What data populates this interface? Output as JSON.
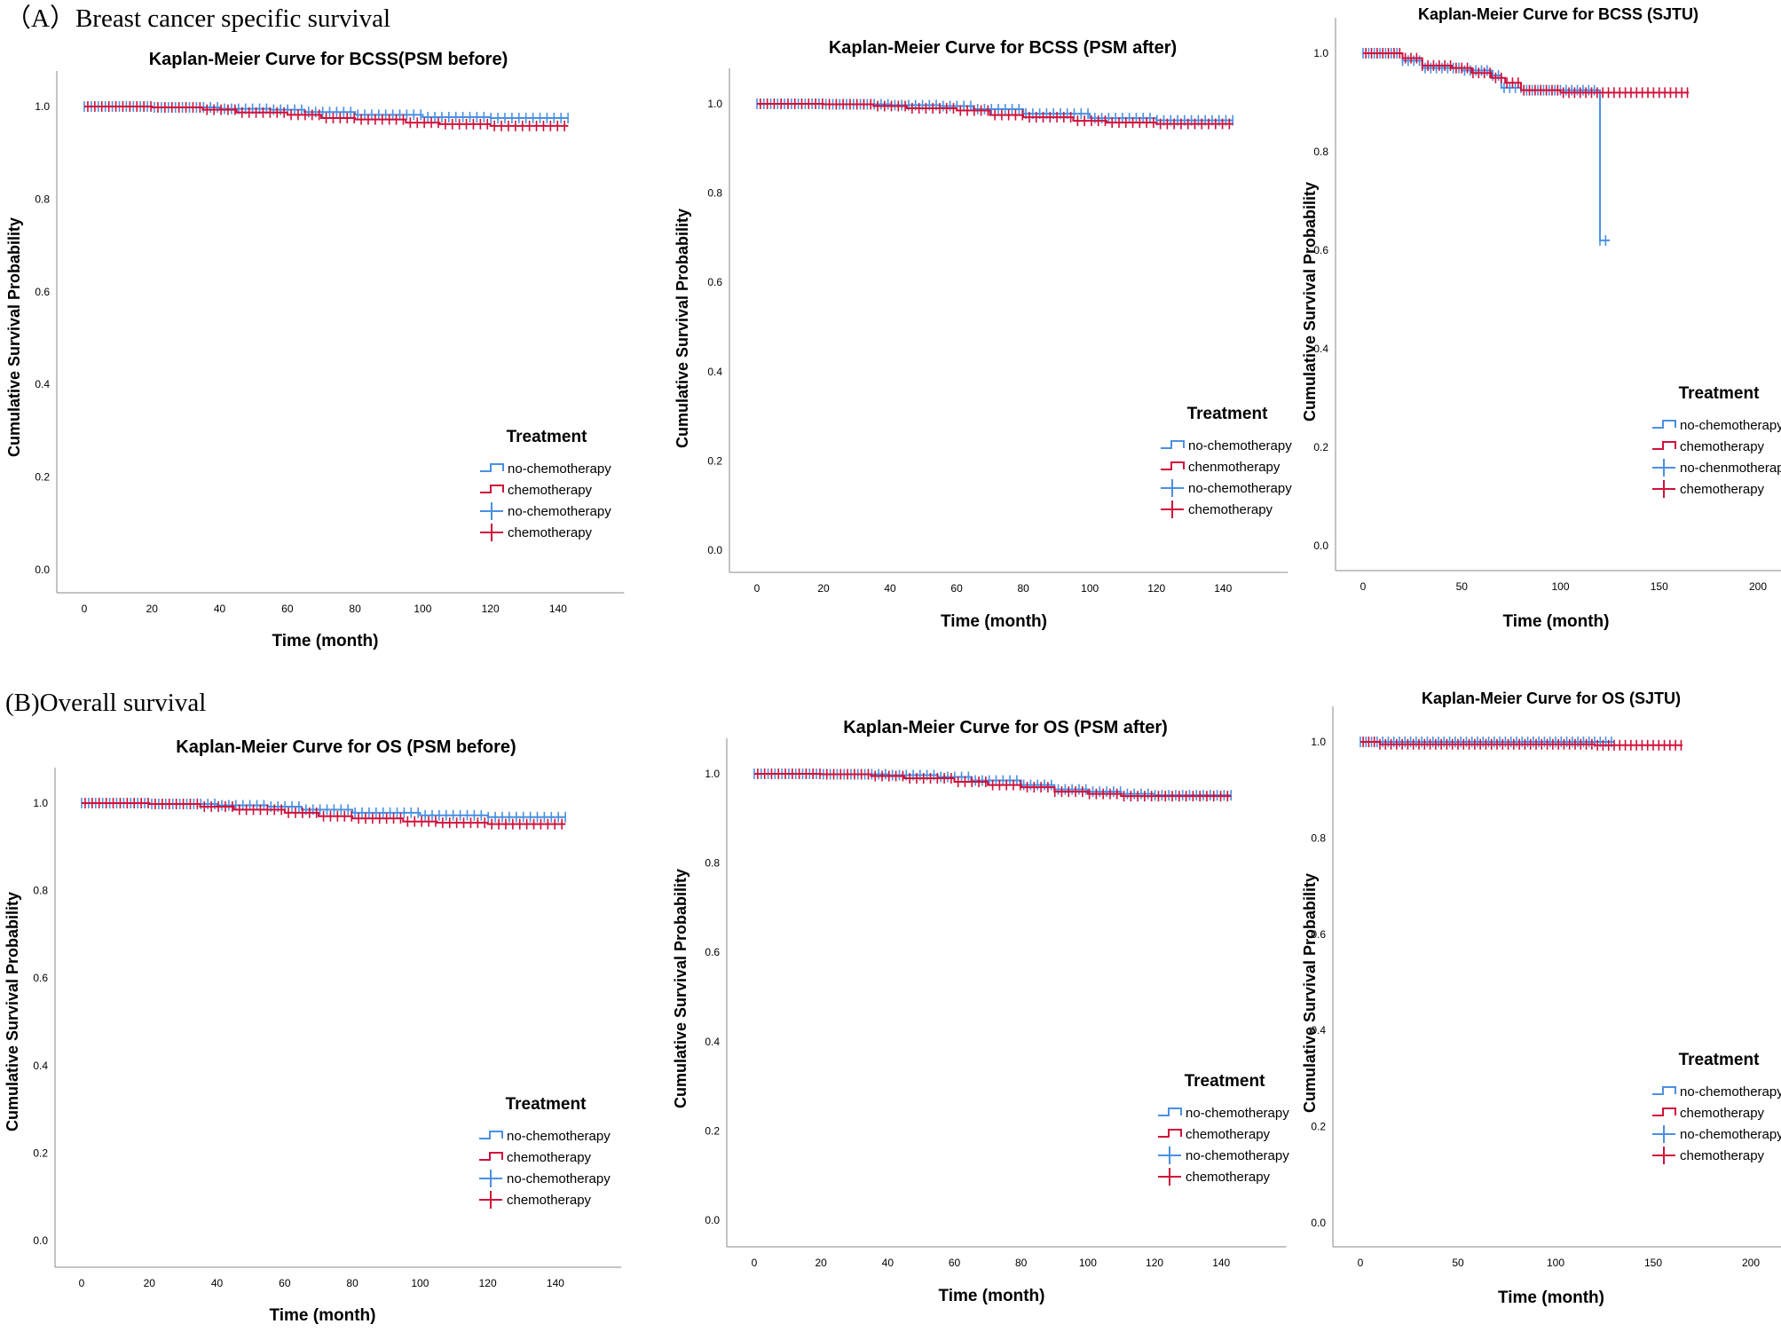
{
  "sections": {
    "a_label": "（A）Breast cancer specific survival",
    "b_label": "(B)Overall survival"
  },
  "colors": {
    "no_chemotherapy": "#4a90e2",
    "chemotherapy": "#d0103a"
  },
  "chart_data": [
    {
      "type": "line",
      "title": "Kaplan-Meier Curve for BCSS(PSM before)",
      "xlabel": "Time (month)",
      "ylabel": "Cumulative Survival Probability",
      "xlim": [
        0,
        145
      ],
      "ylim": [
        0,
        1.0
      ],
      "x_ticks": [
        0,
        20,
        40,
        60,
        80,
        100,
        120,
        140
      ],
      "y_ticks": [
        0.0,
        0.2,
        0.4,
        0.6,
        0.8,
        1.0
      ],
      "legend": {
        "title": "Treatment",
        "position": "bottom-right",
        "entries": [
          "no-chemotherapy",
          "chemotherapy",
          "no-chemotherapy",
          "chemotherapy"
        ]
      },
      "series": [
        {
          "name": "no-chemotherapy",
          "x": [
            0,
            20,
            40,
            55,
            65,
            80,
            100,
            120,
            143
          ],
          "y": [
            1.0,
            0.998,
            0.995,
            0.993,
            0.988,
            0.982,
            0.977,
            0.975,
            0.975
          ]
        },
        {
          "name": "chemotherapy",
          "x": [
            0,
            20,
            35,
            45,
            60,
            70,
            80,
            95,
            105,
            120,
            143
          ],
          "y": [
            1.0,
            0.998,
            0.993,
            0.987,
            0.982,
            0.975,
            0.972,
            0.965,
            0.962,
            0.958,
            0.958
          ]
        }
      ]
    },
    {
      "type": "line",
      "title": "Kaplan-Meier Curve for BCSS (PSM after)",
      "xlabel": "Time (month)",
      "ylabel": "Cumulative Survival Probability",
      "xlim": [
        0,
        145
      ],
      "ylim": [
        0,
        1.0
      ],
      "x_ticks": [
        0,
        20,
        40,
        60,
        80,
        100,
        120,
        140
      ],
      "y_ticks": [
        0.0,
        0.2,
        0.4,
        0.6,
        0.8,
        1.0
      ],
      "legend": {
        "title": "Treatment",
        "position": "bottom-right",
        "entries": [
          "no-chemotherapy",
          "chenmotherapy",
          "no-chemotherapy",
          "chemotherapy"
        ]
      },
      "series": [
        {
          "name": "no-chemotherapy",
          "x": [
            0,
            20,
            40,
            55,
            65,
            80,
            100,
            120,
            143
          ],
          "y": [
            1.0,
            0.999,
            0.997,
            0.995,
            0.988,
            0.978,
            0.968,
            0.963,
            0.963
          ]
        },
        {
          "name": "chemotherapy",
          "x": [
            0,
            20,
            35,
            45,
            60,
            70,
            80,
            95,
            105,
            120,
            143
          ],
          "y": [
            1.0,
            0.999,
            0.995,
            0.99,
            0.985,
            0.975,
            0.97,
            0.962,
            0.958,
            0.955,
            0.955
          ]
        }
      ]
    },
    {
      "type": "line",
      "title": "Kaplan-Meier Curve for BCSS (SJTU)",
      "xlabel": "Time (month)",
      "ylabel": "Cumulative Survival Probability",
      "xlim": [
        0,
        200
      ],
      "ylim": [
        0,
        1.0
      ],
      "x_ticks": [
        0,
        50,
        100,
        150,
        200
      ],
      "y_ticks": [
        0.0,
        0.2,
        0.4,
        0.6,
        0.8,
        1.0
      ],
      "legend": {
        "title": "Treatment",
        "position": "bottom-right",
        "entries": [
          "no-chemotherapy",
          "chemotherapy",
          "no-chenmotherapy",
          "chemotherapy"
        ]
      },
      "series": [
        {
          "name": "no-chemotherapy",
          "x": [
            0,
            10,
            20,
            30,
            50,
            65,
            70,
            80,
            100,
            115,
            120,
            125
          ],
          "y": [
            1.0,
            1.0,
            0.985,
            0.97,
            0.965,
            0.955,
            0.93,
            0.925,
            0.925,
            0.925,
            0.62,
            0.62
          ]
        },
        {
          "name": "chemotherapy",
          "x": [
            0,
            15,
            20,
            30,
            45,
            55,
            65,
            72,
            80,
            100,
            120,
            140,
            165
          ],
          "y": [
            1.0,
            1.0,
            0.99,
            0.975,
            0.97,
            0.96,
            0.95,
            0.94,
            0.925,
            0.92,
            0.92,
            0.92,
            0.92
          ]
        }
      ]
    },
    {
      "type": "line",
      "title": "Kaplan-Meier Curve for OS (PSM before)",
      "xlabel": "Time (month)",
      "ylabel": "Cumulative Survival Probability",
      "xlim": [
        0,
        145
      ],
      "ylim": [
        0,
        1.0
      ],
      "x_ticks": [
        0,
        20,
        40,
        60,
        80,
        100,
        120,
        140
      ],
      "y_ticks": [
        0.0,
        0.2,
        0.4,
        0.6,
        0.8,
        1.0
      ],
      "legend": {
        "title": "Treatment",
        "position": "bottom-right",
        "entries": [
          "no-chemotherapy",
          "chemotherapy",
          "no-chemotherapy",
          "chemotherapy"
        ]
      },
      "series": [
        {
          "name": "no-chemotherapy",
          "x": [
            0,
            20,
            40,
            55,
            65,
            80,
            100,
            120,
            143
          ],
          "y": [
            1.0,
            0.998,
            0.995,
            0.992,
            0.985,
            0.978,
            0.972,
            0.968,
            0.968
          ]
        },
        {
          "name": "chemotherapy",
          "x": [
            0,
            20,
            35,
            45,
            60,
            70,
            80,
            95,
            105,
            120,
            143
          ],
          "y": [
            1.0,
            0.998,
            0.992,
            0.985,
            0.978,
            0.97,
            0.965,
            0.958,
            0.955,
            0.952,
            0.952
          ]
        }
      ]
    },
    {
      "type": "line",
      "title": "Kaplan-Meier Curve for OS (PSM after)",
      "xlabel": "Time (month)",
      "ylabel": "Cumulative Survival Probability",
      "xlim": [
        0,
        145
      ],
      "ylim": [
        0,
        1.0
      ],
      "x_ticks": [
        0,
        20,
        40,
        60,
        80,
        100,
        120,
        140
      ],
      "y_ticks": [
        0.0,
        0.2,
        0.4,
        0.6,
        0.8,
        1.0
      ],
      "legend": {
        "title": "Treatment",
        "position": "bottom-right",
        "entries": [
          "no-chemotherapy",
          "chemotherapy",
          "no-chemotherapy",
          "chemotherapy"
        ]
      },
      "series": [
        {
          "name": "no-chemotherapy",
          "x": [
            0,
            20,
            40,
            55,
            65,
            80,
            90,
            100,
            110,
            120,
            143
          ],
          "y": [
            1.0,
            0.999,
            0.997,
            0.993,
            0.985,
            0.975,
            0.965,
            0.96,
            0.955,
            0.952,
            0.952
          ]
        },
        {
          "name": "chemotherapy",
          "x": [
            0,
            20,
            35,
            45,
            60,
            70,
            80,
            90,
            100,
            110,
            120,
            143
          ],
          "y": [
            1.0,
            0.999,
            0.995,
            0.99,
            0.982,
            0.975,
            0.97,
            0.96,
            0.955,
            0.95,
            0.95,
            0.95
          ]
        }
      ]
    },
    {
      "type": "line",
      "title": "Kaplan-Meier Curve for OS (SJTU)",
      "xlabel": "Time (month)",
      "ylabel": "Cumulative Survival Probability",
      "xlim": [
        0,
        200
      ],
      "ylim": [
        0,
        1.0
      ],
      "x_ticks": [
        0,
        50,
        100,
        150,
        200
      ],
      "y_ticks": [
        0.0,
        0.2,
        0.4,
        0.6,
        0.8,
        1.0
      ],
      "legend": {
        "title": "Treatment",
        "position": "bottom-right",
        "entries": [
          "no-chemotherapy",
          "chemotherapy",
          "no-chemotherapy",
          "chemotherapy"
        ]
      },
      "series": [
        {
          "name": "no-chemotherapy",
          "x": [
            0,
            20,
            40,
            60,
            80,
            100,
            120,
            130
          ],
          "y": [
            1.0,
            1.0,
            1.0,
            1.0,
            1.0,
            1.0,
            1.0,
            1.0
          ]
        },
        {
          "name": "chemotherapy",
          "x": [
            0,
            10,
            30,
            60,
            90,
            120,
            140,
            165
          ],
          "y": [
            1.0,
            0.995,
            0.995,
            0.995,
            0.995,
            0.993,
            0.993,
            0.993
          ]
        }
      ]
    }
  ]
}
